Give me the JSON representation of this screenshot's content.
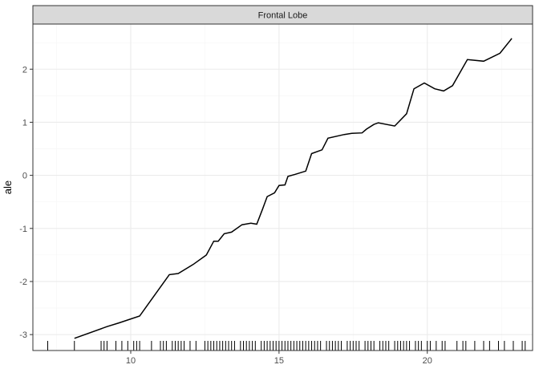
{
  "chart_data": {
    "type": "line",
    "facet_label": "Frontal Lobe",
    "xlabel": "",
    "ylabel": "ale",
    "xlim": [
      6.7,
      23.55
    ],
    "ylim": [
      -3.3,
      2.85
    ],
    "x_ticks": [
      10,
      15,
      20
    ],
    "y_ticks": [
      -3,
      -2,
      -1,
      0,
      1,
      2
    ],
    "grid": true,
    "series": [
      {
        "points": [
          [
            8.1,
            -3.07
          ],
          [
            9.2,
            -2.85
          ],
          [
            9.6,
            -2.78
          ],
          [
            10.3,
            -2.65
          ],
          [
            11.3,
            -1.87
          ],
          [
            11.6,
            -1.85
          ],
          [
            12.1,
            -1.68
          ],
          [
            12.55,
            -1.5
          ],
          [
            12.8,
            -1.24
          ],
          [
            12.95,
            -1.24
          ],
          [
            13.15,
            -1.1
          ],
          [
            13.4,
            -1.07
          ],
          [
            13.75,
            -0.93
          ],
          [
            14.05,
            -0.9
          ],
          [
            14.25,
            -0.92
          ],
          [
            14.45,
            -0.63
          ],
          [
            14.6,
            -0.4
          ],
          [
            14.85,
            -0.33
          ],
          [
            15.0,
            -0.19
          ],
          [
            15.2,
            -0.18
          ],
          [
            15.3,
            -0.02
          ],
          [
            15.55,
            0.02
          ],
          [
            15.9,
            0.08
          ],
          [
            16.1,
            0.41
          ],
          [
            16.45,
            0.48
          ],
          [
            16.65,
            0.7
          ],
          [
            17.2,
            0.77
          ],
          [
            17.45,
            0.79
          ],
          [
            17.8,
            0.8
          ],
          [
            17.95,
            0.87
          ],
          [
            18.2,
            0.96
          ],
          [
            18.35,
            0.99
          ],
          [
            18.9,
            0.93
          ],
          [
            19.3,
            1.16
          ],
          [
            19.55,
            1.63
          ],
          [
            19.9,
            1.74
          ],
          [
            20.25,
            1.63
          ],
          [
            20.55,
            1.59
          ],
          [
            20.85,
            1.69
          ],
          [
            21.35,
            2.18
          ],
          [
            21.9,
            2.15
          ],
          [
            22.45,
            2.3
          ],
          [
            22.85,
            2.58
          ]
        ]
      }
    ],
    "rug_x": [
      7.2,
      8.1,
      9.0,
      9.1,
      9.2,
      9.5,
      9.7,
      9.9,
      10.1,
      10.2,
      10.3,
      10.7,
      11.0,
      11.1,
      11.2,
      11.4,
      11.5,
      11.6,
      11.7,
      11.8,
      12.0,
      12.2,
      12.5,
      12.6,
      12.7,
      12.8,
      12.9,
      13.0,
      13.1,
      13.2,
      13.3,
      13.4,
      13.5,
      13.7,
      13.8,
      13.9,
      14.0,
      14.1,
      14.2,
      14.4,
      14.5,
      14.6,
      14.7,
      14.8,
      14.9,
      15.0,
      15.1,
      15.2,
      15.3,
      15.4,
      15.5,
      15.6,
      15.7,
      15.8,
      15.9,
      16.0,
      16.1,
      16.2,
      16.3,
      16.4,
      16.6,
      16.7,
      16.8,
      16.9,
      17.0,
      17.1,
      17.3,
      17.4,
      17.5,
      17.6,
      17.7,
      17.9,
      18.0,
      18.1,
      18.2,
      18.4,
      18.5,
      18.6,
      18.7,
      18.9,
      19.0,
      19.1,
      19.2,
      19.3,
      19.4,
      19.6,
      19.7,
      19.8,
      20.0,
      20.1,
      20.3,
      20.5,
      20.6,
      21.0,
      21.2,
      21.3,
      21.6,
      21.9,
      22.1,
      22.4,
      22.6,
      22.9,
      23.2,
      23.3
    ],
    "colors": {
      "line": "#000000",
      "rug": "#000000",
      "grid_major": "#ebebeb",
      "grid_minor": "#f5f5f5",
      "panel_border": "#333333",
      "strip_fill": "#d9d9d9",
      "background": "#ffffff"
    }
  }
}
